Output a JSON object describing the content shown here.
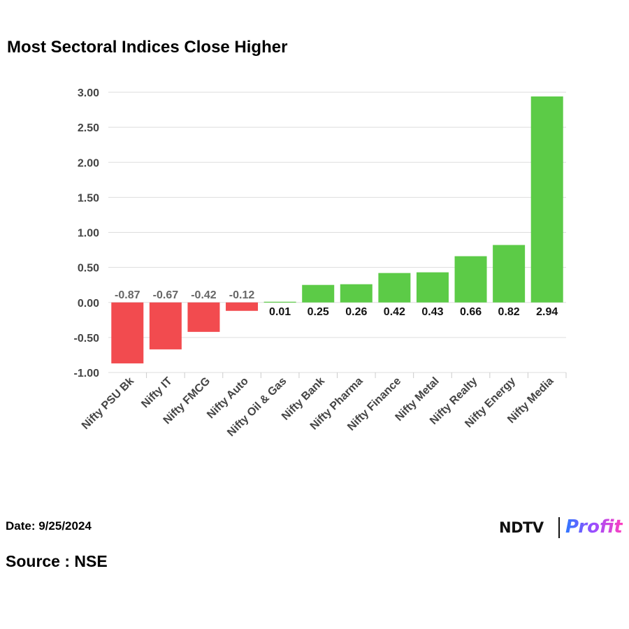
{
  "header": {
    "title": "Most Sectoral Indices Close Higher"
  },
  "footer": {
    "date_text": "Date: 9/25/2024",
    "source_text": "Source : NSE"
  },
  "logo": {
    "brand": "NDTV",
    "product": "Profit"
  },
  "colors": {
    "negative": "#f24b4f",
    "positive": "#5ccb47",
    "negative_label": "#666666",
    "positive_label": "#111111",
    "grid": "#dddddd",
    "axis_text": "#444444"
  },
  "chart_data": {
    "type": "bar",
    "title": "Most Sectoral Indices Close Higher",
    "xlabel": "",
    "ylabel": "",
    "categories": [
      "Nifty PSU Bk",
      "Nifty IT",
      "Nifty FMCG",
      "Nifty Auto",
      "Nifty Oil & Gas",
      "Nifty Bank",
      "Nifty Pharma",
      "Nifty Finance",
      "Nifty Metal",
      "Nifty Realty",
      "Nifty Energy",
      "Nifty Media"
    ],
    "values": [
      -0.87,
      -0.67,
      -0.42,
      -0.12,
      0.01,
      0.25,
      0.26,
      0.42,
      0.43,
      0.66,
      0.82,
      2.94
    ],
    "value_labels": [
      "-0.87",
      "-0.67",
      "-0.42",
      "-0.12",
      "0.01",
      "0.25",
      "0.26",
      "0.42",
      "0.43",
      "0.66",
      "0.82",
      "2.94"
    ],
    "yticks": [
      "3.00",
      "2.50",
      "2.00",
      "1.50",
      "1.00",
      "0.50",
      "0.00",
      "-0.50",
      "-1.00"
    ],
    "ylim": [
      -1.0,
      3.0
    ],
    "grid": true,
    "legend": "none"
  }
}
